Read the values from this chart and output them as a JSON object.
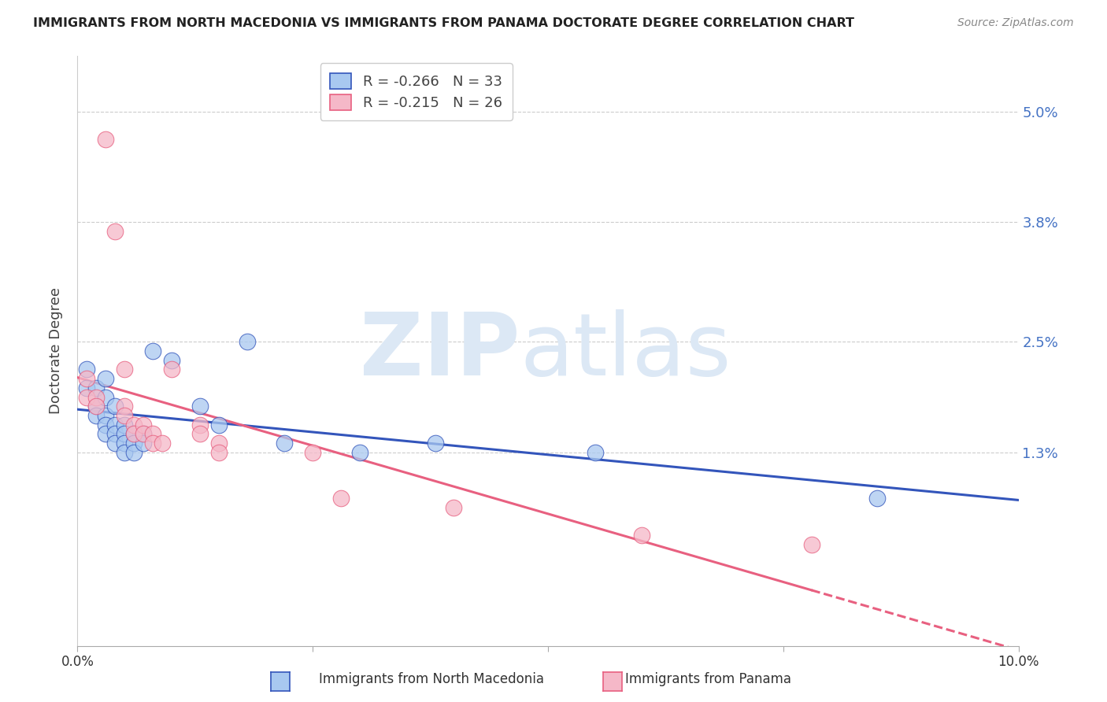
{
  "title": "IMMIGRANTS FROM NORTH MACEDONIA VS IMMIGRANTS FROM PANAMA DOCTORATE DEGREE CORRELATION CHART",
  "source": "Source: ZipAtlas.com",
  "ylabel": "Doctorate Degree",
  "ytick_labels": [
    "5.0%",
    "3.8%",
    "2.5%",
    "1.3%"
  ],
  "ytick_values": [
    0.05,
    0.038,
    0.025,
    0.013
  ],
  "xlim": [
    0.0,
    0.1
  ],
  "ylim": [
    -0.008,
    0.056
  ],
  "color_macedonia": "#A8C8F0",
  "color_panama": "#F5B8C8",
  "color_line_macedonia": "#3355BB",
  "color_line_panama": "#E86080",
  "scatter_macedonia": [
    [
      0.001,
      0.022
    ],
    [
      0.001,
      0.02
    ],
    [
      0.002,
      0.02
    ],
    [
      0.002,
      0.018
    ],
    [
      0.002,
      0.017
    ],
    [
      0.003,
      0.021
    ],
    [
      0.003,
      0.019
    ],
    [
      0.003,
      0.017
    ],
    [
      0.003,
      0.016
    ],
    [
      0.003,
      0.015
    ],
    [
      0.004,
      0.018
    ],
    [
      0.004,
      0.016
    ],
    [
      0.004,
      0.015
    ],
    [
      0.004,
      0.014
    ],
    [
      0.005,
      0.016
    ],
    [
      0.005,
      0.015
    ],
    [
      0.005,
      0.014
    ],
    [
      0.005,
      0.013
    ],
    [
      0.006,
      0.015
    ],
    [
      0.006,
      0.014
    ],
    [
      0.006,
      0.013
    ],
    [
      0.007,
      0.015
    ],
    [
      0.007,
      0.014
    ],
    [
      0.008,
      0.024
    ],
    [
      0.01,
      0.023
    ],
    [
      0.013,
      0.018
    ],
    [
      0.015,
      0.016
    ],
    [
      0.018,
      0.025
    ],
    [
      0.022,
      0.014
    ],
    [
      0.03,
      0.013
    ],
    [
      0.038,
      0.014
    ],
    [
      0.055,
      0.013
    ],
    [
      0.085,
      0.008
    ]
  ],
  "scatter_panama": [
    [
      0.001,
      0.021
    ],
    [
      0.001,
      0.019
    ],
    [
      0.002,
      0.019
    ],
    [
      0.002,
      0.018
    ],
    [
      0.003,
      0.047
    ],
    [
      0.004,
      0.037
    ],
    [
      0.005,
      0.022
    ],
    [
      0.005,
      0.018
    ],
    [
      0.005,
      0.017
    ],
    [
      0.006,
      0.016
    ],
    [
      0.006,
      0.015
    ],
    [
      0.007,
      0.016
    ],
    [
      0.007,
      0.015
    ],
    [
      0.008,
      0.015
    ],
    [
      0.008,
      0.014
    ],
    [
      0.009,
      0.014
    ],
    [
      0.01,
      0.022
    ],
    [
      0.013,
      0.016
    ],
    [
      0.013,
      0.015
    ],
    [
      0.015,
      0.014
    ],
    [
      0.015,
      0.013
    ],
    [
      0.025,
      0.013
    ],
    [
      0.028,
      0.008
    ],
    [
      0.04,
      0.007
    ],
    [
      0.06,
      0.004
    ],
    [
      0.078,
      0.003
    ]
  ]
}
